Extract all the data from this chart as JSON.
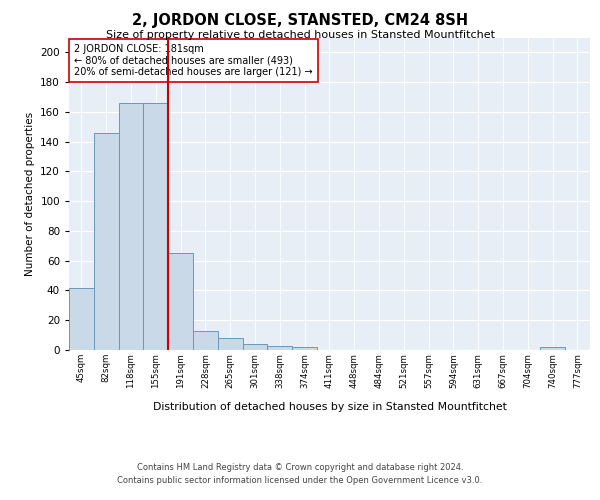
{
  "title": "2, JORDON CLOSE, STANSTED, CM24 8SH",
  "subtitle": "Size of property relative to detached houses in Stansted Mountfitchet",
  "xlabel": "Distribution of detached houses by size in Stansted Mountfitchet",
  "ylabel": "Number of detached properties",
  "bin_labels": [
    "45sqm",
    "82sqm",
    "118sqm",
    "155sqm",
    "191sqm",
    "228sqm",
    "265sqm",
    "301sqm",
    "338sqm",
    "374sqm",
    "411sqm",
    "448sqm",
    "484sqm",
    "521sqm",
    "557sqm",
    "594sqm",
    "631sqm",
    "667sqm",
    "704sqm",
    "740sqm",
    "777sqm"
  ],
  "bar_values": [
    42,
    146,
    166,
    166,
    65,
    13,
    8,
    4,
    3,
    2,
    0,
    0,
    0,
    0,
    0,
    0,
    0,
    0,
    0,
    2,
    0
  ],
  "bar_color": "#c9d9e8",
  "bar_edgecolor": "#6699bb",
  "red_line_bin": 4,
  "annotation_line1": "2 JORDON CLOSE: 181sqm",
  "annotation_line2": "← 80% of detached houses are smaller (493)",
  "annotation_line3": "20% of semi-detached houses are larger (121) →",
  "annotation_box_color": "#ffffff",
  "annotation_box_edgecolor": "#cc0000",
  "ylim": [
    0,
    210
  ],
  "yticks": [
    0,
    20,
    40,
    60,
    80,
    100,
    120,
    140,
    160,
    180,
    200
  ],
  "background_color": "#e8eef5",
  "grid_color": "#ffffff",
  "footer_line1": "Contains HM Land Registry data © Crown copyright and database right 2024.",
  "footer_line2": "Contains public sector information licensed under the Open Government Licence v3.0."
}
